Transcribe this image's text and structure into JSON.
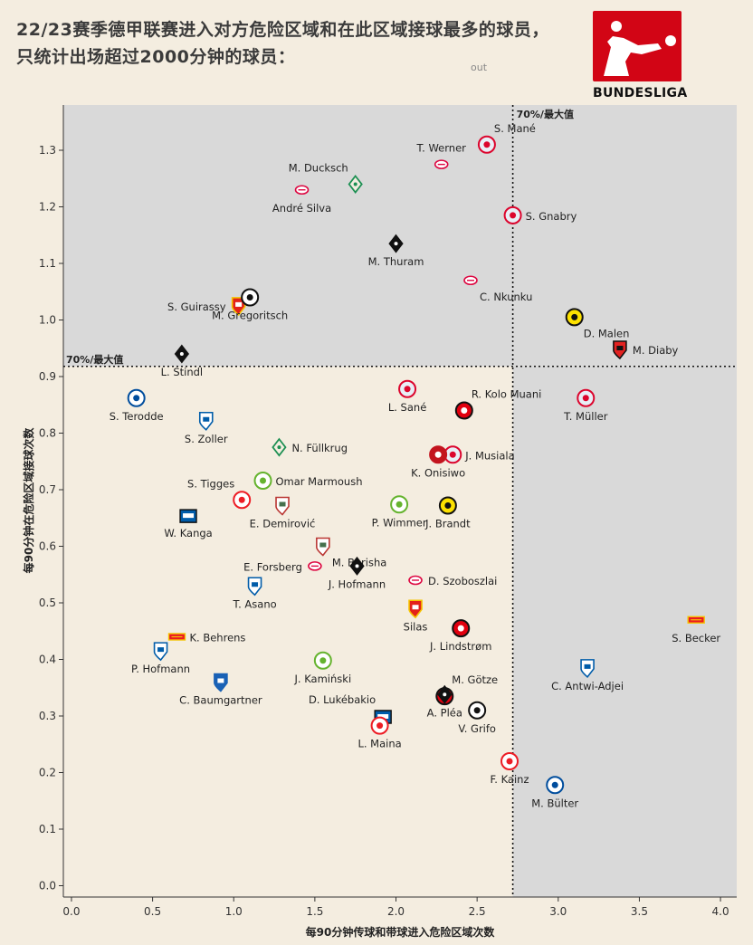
{
  "title": "22/23赛季德甲联赛进入对方危险区域和在此区域接球最多的球员，只统计出场超过2000分钟的球员：",
  "subtitle_fragment": "out",
  "logo_text": "BUNDESLIGA",
  "colors": {
    "background": "#f4ede0",
    "shade": "#d9d9d9",
    "logo_red": "#d20515"
  },
  "chart_data": {
    "type": "scatter",
    "xlabel": "每90分钟传球和带球进入危险区域次数",
    "ylabel": "每90分钟在危险区域接球次数",
    "xlim": [
      -0.05,
      4.1
    ],
    "ylim": [
      -0.02,
      1.38
    ],
    "x_ticks": [
      0.0,
      0.5,
      1.0,
      1.5,
      2.0,
      2.5,
      3.0,
      3.5,
      4.0
    ],
    "x_tick_labels": [
      "0.0",
      "0.5",
      "1.0",
      "1.5",
      "2.0",
      "2.5",
      "3.0",
      "3.5",
      "4.0"
    ],
    "y_ticks": [
      0.0,
      0.1,
      0.2,
      0.3,
      0.4,
      0.5,
      0.6,
      0.7,
      0.8,
      0.9,
      1.0,
      1.1,
      1.2,
      1.3
    ],
    "y_tick_labels": [
      "0.0",
      "0.1",
      "0.2",
      "0.3",
      "0.4",
      "0.5",
      "0.6",
      "0.7",
      "0.8",
      "0.9",
      "1.0",
      "1.1",
      "1.2",
      "1.3"
    ],
    "threshold_x": 2.72,
    "threshold_y": 0.918,
    "threshold_label": "70%/最大值",
    "points": [
      {
        "player": "S. Mané",
        "x": 2.56,
        "y": 1.31,
        "club": "Bayern",
        "label_pos": "tr"
      },
      {
        "player": "T. Werner",
        "x": 2.28,
        "y": 1.275,
        "club": "Leipzig",
        "label_pos": "t"
      },
      {
        "player": "M. Ducksch",
        "x": 1.75,
        "y": 1.24,
        "club": "Werder",
        "label_pos": "tl"
      },
      {
        "player": "André Silva",
        "x": 1.42,
        "y": 1.23,
        "club": "Leipzig",
        "label_pos": "b"
      },
      {
        "player": "S. Gnabry",
        "x": 2.72,
        "y": 1.185,
        "club": "Bayern",
        "label_pos": "r"
      },
      {
        "player": "M. Thuram",
        "x": 2.0,
        "y": 1.135,
        "club": "Gladbach",
        "label_pos": "b"
      },
      {
        "player": "C. Nkunku",
        "x": 2.46,
        "y": 1.07,
        "club": "Leipzig",
        "label_pos": "br"
      },
      {
        "player": "S. Guirassy",
        "x": 1.03,
        "y": 1.025,
        "club": "Stuttgart",
        "label_pos": "l"
      },
      {
        "player": "M. Gregoritsch",
        "x": 1.1,
        "y": 1.04,
        "club": "Freiburg",
        "label_pos": "b"
      },
      {
        "player": "D. Malen",
        "x": 3.1,
        "y": 1.005,
        "club": "Dortmund",
        "label_pos": "br"
      },
      {
        "player": "M. Diaby",
        "x": 3.38,
        "y": 0.948,
        "club": "Leverkusen",
        "label_pos": "r"
      },
      {
        "player": "L. Stindl",
        "x": 0.68,
        "y": 0.94,
        "club": "Gladbach",
        "label_pos": "b"
      },
      {
        "player": "L. Sané",
        "x": 2.07,
        "y": 0.878,
        "club": "Bayern",
        "label_pos": "b"
      },
      {
        "player": "R. Kolo Muani",
        "x": 2.42,
        "y": 0.84,
        "club": "Frankfurt",
        "label_pos": "tr"
      },
      {
        "player": "T. Müller",
        "x": 3.17,
        "y": 0.862,
        "club": "Bayern",
        "label_pos": "b"
      },
      {
        "player": "S. Terodde",
        "x": 0.4,
        "y": 0.862,
        "club": "Schalke",
        "label_pos": "b"
      },
      {
        "player": "S. Zoller",
        "x": 0.83,
        "y": 0.822,
        "club": "Bochum",
        "label_pos": "b"
      },
      {
        "player": "N. Füllkrug",
        "x": 1.28,
        "y": 0.775,
        "club": "Werder",
        "label_pos": "r"
      },
      {
        "player": "J. Musiala",
        "x": 2.35,
        "y": 0.762,
        "club": "Bayern",
        "label_pos": "r"
      },
      {
        "player": "K. Onisiwo",
        "x": 2.26,
        "y": 0.762,
        "club": "Mainz",
        "label_pos": "b"
      },
      {
        "player": "Omar Marmoush",
        "x": 1.18,
        "y": 0.716,
        "club": "Wolfsburg",
        "label_pos": "r"
      },
      {
        "player": "S. Tigges",
        "x": 1.05,
        "y": 0.682,
        "club": "Koln",
        "label_pos": "tl"
      },
      {
        "player": "E. Demirović",
        "x": 1.3,
        "y": 0.672,
        "club": "Augsburg",
        "label_pos": "b"
      },
      {
        "player": "P. Wimmer",
        "x": 2.02,
        "y": 0.674,
        "club": "Wolfsburg",
        "label_pos": "b"
      },
      {
        "player": "J. Brandt",
        "x": 2.32,
        "y": 0.672,
        "club": "Dortmund",
        "label_pos": "b"
      },
      {
        "player": "W. Kanga",
        "x": 0.72,
        "y": 0.655,
        "club": "Hertha",
        "label_pos": "b"
      },
      {
        "player": "M. Berisha",
        "x": 1.55,
        "y": 0.6,
        "club": "Augsburg",
        "label_pos": "br"
      },
      {
        "player": "E. Forsberg",
        "x": 1.5,
        "y": 0.565,
        "club": "Leipzig",
        "label_pos": "l"
      },
      {
        "player": "J. Hofmann",
        "x": 1.76,
        "y": 0.565,
        "club": "Gladbach",
        "label_pos": "b"
      },
      {
        "player": "D. Szoboszlai",
        "x": 2.12,
        "y": 0.54,
        "club": "Leipzig",
        "label_pos": "r"
      },
      {
        "player": "T. Asano",
        "x": 1.13,
        "y": 0.53,
        "club": "Bochum",
        "label_pos": "b"
      },
      {
        "player": "S. Becker",
        "x": 3.85,
        "y": 0.47,
        "club": "Union",
        "label_pos": "b"
      },
      {
        "player": "Silas",
        "x": 2.12,
        "y": 0.49,
        "club": "Stuttgart",
        "label_pos": "b"
      },
      {
        "player": "J. Lindstrøm",
        "x": 2.4,
        "y": 0.455,
        "club": "Frankfurt",
        "label_pos": "b"
      },
      {
        "player": "K. Behrens",
        "x": 0.65,
        "y": 0.44,
        "club": "Union",
        "label_pos": "r"
      },
      {
        "player": "P. Hofmann",
        "x": 0.55,
        "y": 0.415,
        "club": "Bochum",
        "label_pos": "b"
      },
      {
        "player": "C. Antwi-Adjei",
        "x": 3.18,
        "y": 0.385,
        "club": "Bochum",
        "label_pos": "b"
      },
      {
        "player": "J. Kamiński",
        "x": 1.55,
        "y": 0.398,
        "club": "Wolfsburg",
        "label_pos": "b"
      },
      {
        "player": "C. Baumgartner",
        "x": 0.92,
        "y": 0.36,
        "club": "Hoffenheim",
        "label_pos": "b"
      },
      {
        "player": "M. Götze",
        "x": 2.3,
        "y": 0.335,
        "club": "Frankfurt",
        "label_pos": "tr"
      },
      {
        "player": "D. Lukébakio",
        "x": 1.92,
        "y": 0.3,
        "club": "Hertha",
        "label_pos": "tl"
      },
      {
        "player": "A. Pléa",
        "x": 2.3,
        "y": 0.338,
        "club": "Gladbach",
        "label_pos": "b"
      },
      {
        "player": "L. Maina",
        "x": 1.9,
        "y": 0.283,
        "club": "Koln",
        "label_pos": "b"
      },
      {
        "player": "V. Grifo",
        "x": 2.5,
        "y": 0.31,
        "club": "Freiburg",
        "label_pos": "b"
      },
      {
        "player": "F. Kainz",
        "x": 2.7,
        "y": 0.22,
        "club": "Koln",
        "label_pos": "b"
      },
      {
        "player": "M. Bülter",
        "x": 2.98,
        "y": 0.178,
        "club": "Schalke",
        "label_pos": "b"
      }
    ]
  }
}
